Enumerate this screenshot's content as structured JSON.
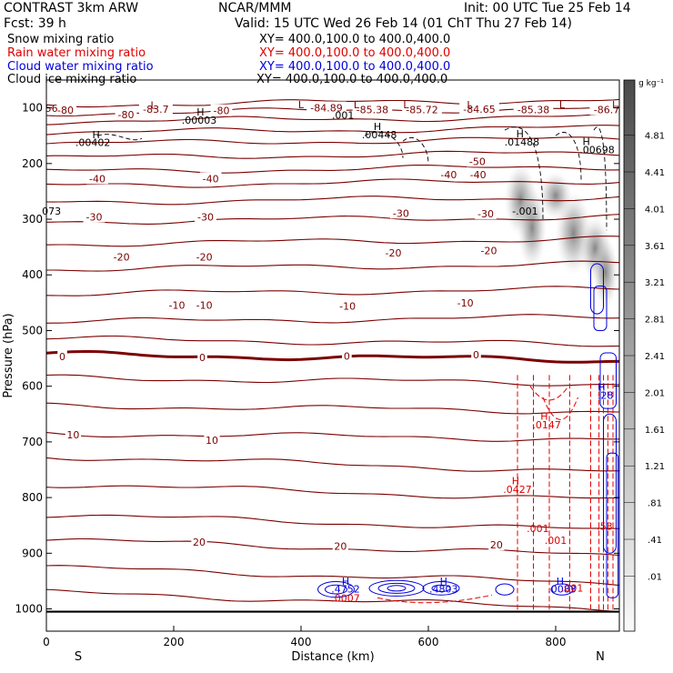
{
  "header": {
    "title": "CONTRAST   3km ARW",
    "center": "NCAR/MMM",
    "init": "Init: 00 UTC Tue 25 Feb 14",
    "fcst": "Fcst:    39 h",
    "valid": "Valid: 15 UTC Wed 26 Feb 14 (01 ChT Thu 27 Feb 14)"
  },
  "fields": [
    {
      "name": "Snow mixing ratio",
      "xy": "XY= 400.0,100.0 to 400.0,400.0",
      "color": "#000000"
    },
    {
      "name": "Rain water mixing ratio",
      "xy": "XY= 400.0,100.0 to 400.0,400.0",
      "color": "#e00000"
    },
    {
      "name": "Cloud water mixing ratio",
      "xy": "XY= 400.0,100.0 to 400.0,400.0",
      "color": "#0000dd"
    },
    {
      "name": "Cloud ice mixing ratio",
      "xy": "XY= 400.0,100.0 to 400.0,400.0",
      "color": "#000000"
    }
  ],
  "chart_data": {
    "type": "contour cross-section",
    "xlabel": "Distance (km)",
    "ylabel": "Pressure (hPa)",
    "xlim": [
      0,
      900
    ],
    "ylim": [
      1040,
      50
    ],
    "x_ticks": [
      0,
      200,
      400,
      600,
      800
    ],
    "y_ticks": [
      100,
      200,
      300,
      400,
      500,
      600,
      700,
      800,
      900,
      1000
    ],
    "x_end_labels": {
      "left": "S",
      "right": "N"
    },
    "colorbar": {
      "unit": "g kg⁻¹",
      "labels": [
        "4.81",
        "4.41",
        "4.01",
        "3.61",
        "3.21",
        "2.81",
        "2.41",
        "2.01",
        "1.61",
        "1.21",
        ".81",
        ".41",
        ".01"
      ]
    },
    "colors": {
      "temperature": "#7a0000",
      "rain": "#e00000",
      "cloud_water": "#0000dd",
      "label": "#7a0000"
    },
    "temperature_contour_labels": [
      {
        "x": 30,
        "p": 104,
        "t": "-80"
      },
      {
        "x": 125,
        "p": 112,
        "t": "-80"
      },
      {
        "x": 172,
        "p": 102,
        "t": "-83.7"
      },
      {
        "x": 275,
        "p": 105,
        "t": "-80"
      },
      {
        "x": 440,
        "p": 100,
        "t": "-84.89"
      },
      {
        "x": 512,
        "p": 103,
        "t": "-85.38"
      },
      {
        "x": 590,
        "p": 103,
        "t": "-85.72"
      },
      {
        "x": 680,
        "p": 102,
        "t": "-84.65"
      },
      {
        "x": 765,
        "p": 103,
        "t": "-85.38"
      },
      {
        "x": 880,
        "p": 103,
        "t": "-86.7"
      },
      {
        "x": 80,
        "p": 227,
        "t": "-40"
      },
      {
        "x": 258,
        "p": 227,
        "t": "-40"
      },
      {
        "x": 632,
        "p": 220,
        "t": "-40"
      },
      {
        "x": 678,
        "p": 220,
        "t": "-40"
      },
      {
        "x": 677,
        "p": 196,
        "t": "-50"
      },
      {
        "x": 75,
        "p": 296,
        "t": "-30"
      },
      {
        "x": 250,
        "p": 296,
        "t": "-30"
      },
      {
        "x": 557,
        "p": 289,
        "t": "-30"
      },
      {
        "x": 690,
        "p": 290,
        "t": "-30"
      },
      {
        "x": 118,
        "p": 368,
        "t": "-20"
      },
      {
        "x": 248,
        "p": 368,
        "t": "-20"
      },
      {
        "x": 545,
        "p": 360,
        "t": "-20"
      },
      {
        "x": 695,
        "p": 356,
        "t": "-20"
      },
      {
        "x": 205,
        "p": 454,
        "t": "-10"
      },
      {
        "x": 248,
        "p": 454,
        "t": "-10"
      },
      {
        "x": 473,
        "p": 456,
        "t": "-10"
      },
      {
        "x": 658,
        "p": 450,
        "t": "-10"
      },
      {
        "x": 25,
        "p": 547,
        "t": "0"
      },
      {
        "x": 245,
        "p": 548,
        "t": "0"
      },
      {
        "x": 472,
        "p": 546,
        "t": "0"
      },
      {
        "x": 675,
        "p": 543,
        "t": "0"
      },
      {
        "x": 42,
        "p": 687,
        "t": "10"
      },
      {
        "x": 260,
        "p": 697,
        "t": "10"
      },
      {
        "x": 240,
        "p": 880,
        "t": "20"
      },
      {
        "x": 462,
        "p": 887,
        "t": "20"
      },
      {
        "x": 707,
        "p": 885,
        "t": "20"
      }
    ],
    "other_labels": [
      {
        "x": 8,
        "p": 101,
        "t": "56",
        "c": "label"
      },
      {
        "x": 8,
        "p": 285,
        "t": "073",
        "c": "black"
      },
      {
        "x": 168,
        "p": 95,
        "t": "L",
        "c": "label"
      },
      {
        "x": 400,
        "p": 94,
        "t": "L",
        "c": "label"
      },
      {
        "x": 487,
        "p": 94,
        "t": "L",
        "c": "label"
      },
      {
        "x": 565,
        "p": 94,
        "t": "L",
        "c": "label"
      },
      {
        "x": 665,
        "p": 94,
        "t": "L",
        "c": "label"
      },
      {
        "x": 810,
        "p": 94,
        "t": "L",
        "c": "label"
      },
      {
        "x": 893,
        "p": 94,
        "t": "L",
        "c": "label"
      },
      {
        "x": 242,
        "p": 107,
        "t": "H",
        "c": "black"
      },
      {
        "x": 240,
        "p": 122,
        "t": ".00003",
        "c": "black"
      },
      {
        "x": 78,
        "p": 148,
        "t": "H",
        "c": "black"
      },
      {
        "x": 73,
        "p": 162,
        "t": ".00402",
        "c": "black"
      },
      {
        "x": 466,
        "p": 113,
        "t": ".001",
        "c": "black"
      },
      {
        "x": 520,
        "p": 133,
        "t": "H",
        "c": "black"
      },
      {
        "x": 523,
        "p": 148,
        "t": ".00448",
        "c": "black"
      },
      {
        "x": 744,
        "p": 146,
        "t": "H",
        "c": "black"
      },
      {
        "x": 747,
        "p": 161,
        "t": ".01488",
        "c": "black"
      },
      {
        "x": 848,
        "p": 160,
        "t": "H",
        "c": "black"
      },
      {
        "x": 865,
        "p": 175,
        "t": ".00698",
        "c": "black"
      },
      {
        "x": 752,
        "p": 285,
        "t": "-.001",
        "c": "black"
      },
      {
        "x": 782,
        "p": 654,
        "t": "H",
        "c": "rain"
      },
      {
        "x": 786,
        "p": 669,
        "t": ".0147",
        "c": "rain"
      },
      {
        "x": 737,
        "p": 770,
        "t": "H",
        "c": "rain"
      },
      {
        "x": 740,
        "p": 785,
        "t": ".0427",
        "c": "rain"
      },
      {
        "x": 772,
        "p": 855,
        "t": ".001",
        "c": "rain"
      },
      {
        "x": 800,
        "p": 877,
        "t": ".001",
        "c": "rain"
      },
      {
        "x": 877,
        "p": 851,
        "t": ".53",
        "c": "rain"
      },
      {
        "x": 872,
        "p": 601,
        "t": "H",
        "c": "cloud_water"
      },
      {
        "x": 878,
        "p": 616,
        "t": ".28",
        "c": "cloud_water"
      },
      {
        "x": 470,
        "p": 950,
        "t": "H",
        "c": "cloud_water"
      },
      {
        "x": 470,
        "p": 964,
        "t": ".4752",
        "c": "cloud_water"
      },
      {
        "x": 624,
        "p": 950,
        "t": "H",
        "c": "cloud_water"
      },
      {
        "x": 624,
        "p": 964,
        "t": ".4803",
        "c": "cloud_water"
      },
      {
        "x": 807,
        "p": 950,
        "t": "H",
        "c": "cloud_water"
      },
      {
        "x": 810,
        "p": 964,
        "t": ".0083",
        "c": "cloud_water"
      },
      {
        "x": 470,
        "p": 980,
        "t": ".0007",
        "c": "rain"
      },
      {
        "x": 826,
        "p": 962,
        "t": ".001",
        "c": "rain"
      }
    ]
  }
}
